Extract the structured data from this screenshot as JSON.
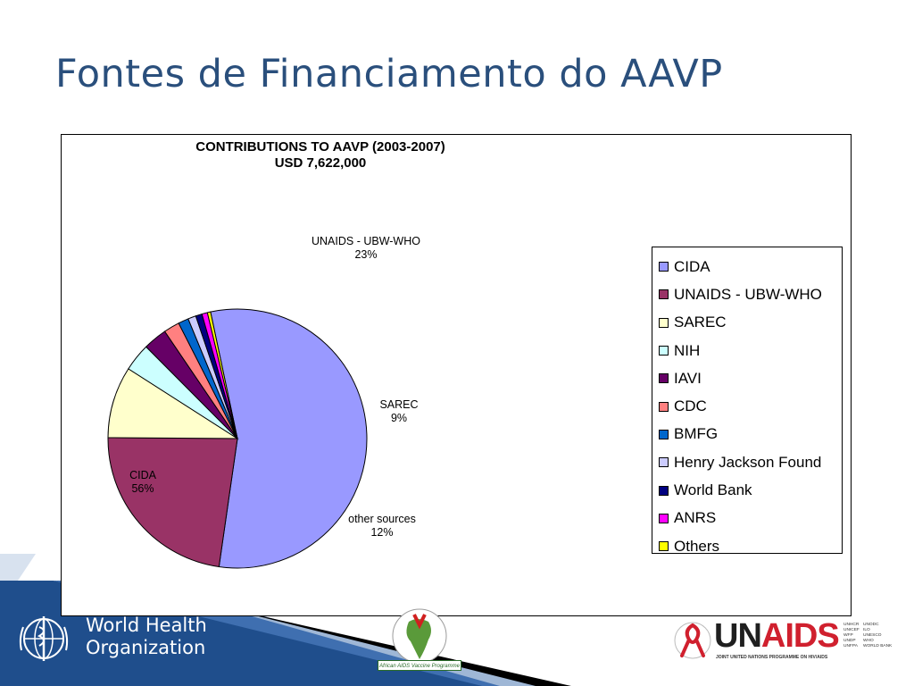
{
  "slide": {
    "title": "Fontes de Financiamento do AAVP"
  },
  "chart_data": {
    "type": "pie",
    "title": "CONTRIBUTIONS TO AAVP (2003-2007)",
    "subtitle": "USD 7,622,000",
    "legend_position": "right",
    "slices": [
      {
        "name": "CIDA",
        "value": 56,
        "color": "#9999ff"
      },
      {
        "name": "UNAIDS - UBW-WHO",
        "value": 23,
        "color": "#993366"
      },
      {
        "name": "SAREC",
        "value": 9,
        "color": "#ffffcc"
      },
      {
        "name": "NIH",
        "value": 3.5,
        "color": "#ccffff"
      },
      {
        "name": "IAVI",
        "value": 3,
        "color": "#660066"
      },
      {
        "name": "CDC",
        "value": 2,
        "color": "#ff8080"
      },
      {
        "name": "BMFG",
        "value": 1.3,
        "color": "#0066cc"
      },
      {
        "name": "Henry Jackson Found",
        "value": 1,
        "color": "#ccccff"
      },
      {
        "name": "World Bank",
        "value": 0.8,
        "color": "#000080"
      },
      {
        "name": "ANRS",
        "value": 0.7,
        "color": "#ff00ff"
      },
      {
        "name": "Others",
        "value": 0.4,
        "color": "#ffff00"
      }
    ],
    "data_labels": [
      {
        "name": "UNAIDS - UBW-WHO",
        "percent": "23%"
      },
      {
        "name": "SAREC",
        "percent": "9%"
      },
      {
        "name": "other sources",
        "percent": "12%"
      },
      {
        "name": "CIDA",
        "percent": "56%"
      }
    ]
  },
  "footer": {
    "who": {
      "line1": "World Health",
      "line2": "Organization"
    },
    "aavp": {
      "caption": "African AIDS Vaccine Programme"
    },
    "unaids": {
      "word_un": "UN",
      "word_aids": "AIDS",
      "subtitle": "JOINT UNITED NATIONS PROGRAMME ON HIV/AIDS",
      "cosponsors": [
        "UNHCR",
        "UNODC",
        "UNICEF",
        "ILO",
        "WFP",
        "UNESCO",
        "UNDP",
        "WHO",
        "UNFPA",
        "WORLD BANK"
      ]
    }
  },
  "colors": {
    "title": "#2a4f7c",
    "footer_blue": "#1f4e8c",
    "unaids_red": "#d0202e"
  }
}
